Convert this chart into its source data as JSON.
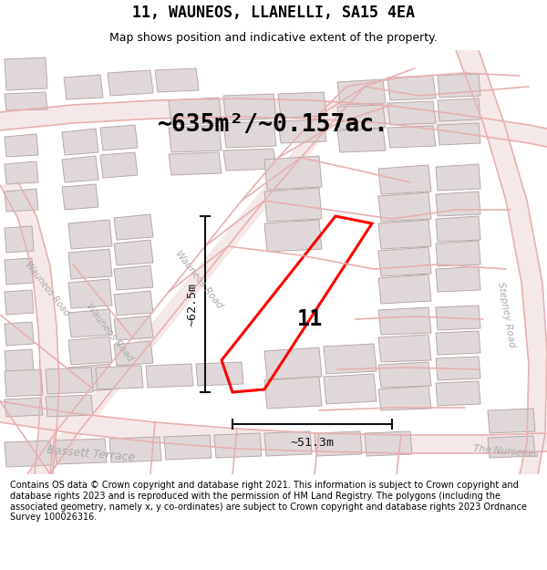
{
  "title": "11, WAUNEOS, LLANELLI, SA15 4EA",
  "subtitle": "Map shows position and indicative extent of the property.",
  "area_text": "~635m²/~0.157ac.",
  "dim_width": "~51.3m",
  "dim_height": "~62.5m",
  "property_label": "11",
  "footer_text": "Contains OS data © Crown copyright and database right 2021. This information is subject to Crown copyright and database rights 2023 and is reproduced with the permission of HM Land Registry. The polygons (including the associated geometry, namely x, y co-ordinates) are subject to Crown copyright and database rights 2023 Ordnance Survey 100026316.",
  "map_bg": "#ffffff",
  "road_line_color": "#e8b0b0",
  "road_fill_color": "#f5e8e8",
  "building_fill": "#e0d8d8",
  "building_edge": "#b8a8a8",
  "property_color": "#ff0000",
  "dim_color": "#111111",
  "label_color": "#aaaaaa",
  "title_fontsize": 12,
  "subtitle_fontsize": 9,
  "area_fontsize": 19,
  "property_lw": 2.2
}
